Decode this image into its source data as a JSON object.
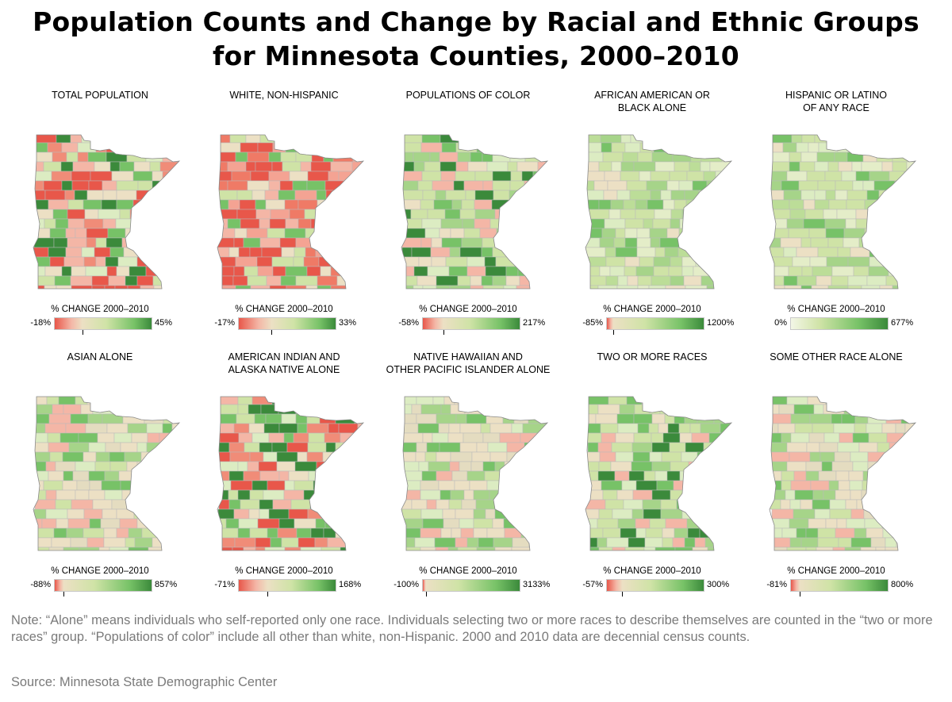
{
  "title_line1": "Population Counts and Change by Racial and Ethnic Groups",
  "title_line2": "for Minnesota Counties, 2000–2010",
  "legend_title": "% CHANGE 2000–2010",
  "note": "Note: “Alone” means individuals who self-reported only one race. Individuals selecting two or more races to describe themselves are counted in the “two or more races” group. “Populations of color” include all other than white, non-Hispanic. 2000 and 2010 data are decennial census counts.",
  "source": "Source: Minnesota State Demographic Center",
  "colors": {
    "red": "#e8574a",
    "neutral": "#ece0c4",
    "light_green": "#cfe3a6",
    "green": "#77c267",
    "dark_green": "#3b8a3b"
  },
  "panels": [
    {
      "label_line1": "TOTAL POPULATION",
      "label_line2": "",
      "min_label": "-18%",
      "max_label": "45%",
      "min": -18,
      "max": 45,
      "scheme": "diverging",
      "tone": "mixed"
    },
    {
      "label_line1": "WHITE, NON-HISPANIC",
      "label_line2": "",
      "min_label": "-17%",
      "max_label": "33%",
      "min": -17,
      "max": 33,
      "scheme": "diverging",
      "tone": "red"
    },
    {
      "label_line1": "POPULATIONS OF COLOR",
      "label_line2": "",
      "min_label": "-58%",
      "max_label": "217%",
      "min": -58,
      "max": 217,
      "scheme": "diverging",
      "tone": "green"
    },
    {
      "label_line1": "AFRICAN AMERICAN OR",
      "label_line2": "BLACK ALONE",
      "min_label": "-85%",
      "max_label": "1200%",
      "min": -85,
      "max": 1200,
      "scheme": "diverging",
      "tone": "lightgreen"
    },
    {
      "label_line1": "HISPANIC OR LATINO",
      "label_line2": "OF ANY RACE",
      "min_label": "0%",
      "max_label": "677%",
      "min": 0,
      "max": 677,
      "scheme": "sequential",
      "tone": "lightgreen"
    },
    {
      "label_line1": "ASIAN ALONE",
      "label_line2": "",
      "min_label": "-88%",
      "max_label": "857%",
      "min": -88,
      "max": 857,
      "scheme": "diverging",
      "tone": "neutral"
    },
    {
      "label_line1": "AMERICAN INDIAN AND",
      "label_line2": "ALASKA NATIVE ALONE",
      "min_label": "-71%",
      "max_label": "168%",
      "min": -71,
      "max": 168,
      "scheme": "diverging",
      "tone": "mixed"
    },
    {
      "label_line1": "NATIVE HAWAIIAN AND",
      "label_line2": "OTHER PACIFIC ISLANDER ALONE",
      "min_label": "-100%",
      "max_label": "3133%",
      "min": -100,
      "max": 3133,
      "scheme": "diverging",
      "tone": "neutral"
    },
    {
      "label_line1": "TWO OR MORE RACES",
      "label_line2": "",
      "min_label": "-57%",
      "max_label": "300%",
      "min": -57,
      "max": 300,
      "scheme": "diverging",
      "tone": "green"
    },
    {
      "label_line1": "SOME OTHER RACE ALONE",
      "label_line2": "",
      "min_label": "-81%",
      "max_label": "800%",
      "min": -81,
      "max": 800,
      "scheme": "diverging",
      "tone": "neutral"
    }
  ]
}
